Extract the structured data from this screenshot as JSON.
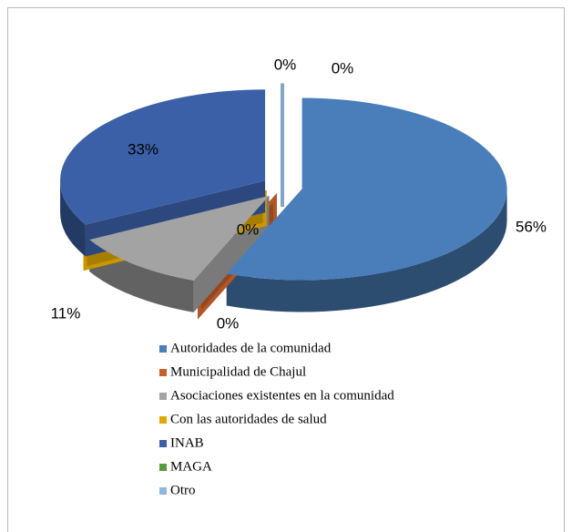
{
  "chart_data": {
    "type": "pie3d",
    "categories": [
      "Autoridades de la comunidad",
      "Municipalidad de Chajul",
      "Asociaciones existentes en la comunidad",
      "Con las autoridades de salud",
      "INAB",
      "MAGA",
      "Otro"
    ],
    "values": [
      56,
      0,
      11,
      0,
      33,
      0,
      0
    ],
    "value_labels": [
      "56%",
      "0%",
      "11%",
      "0%",
      "33%",
      "0%",
      "0%"
    ],
    "colors": [
      "#4a7ebb",
      "#c5602a",
      "#a3a3a3",
      "#e0a800",
      "#3b60a8",
      "#5b9a3c",
      "#92b6dd"
    ]
  }
}
